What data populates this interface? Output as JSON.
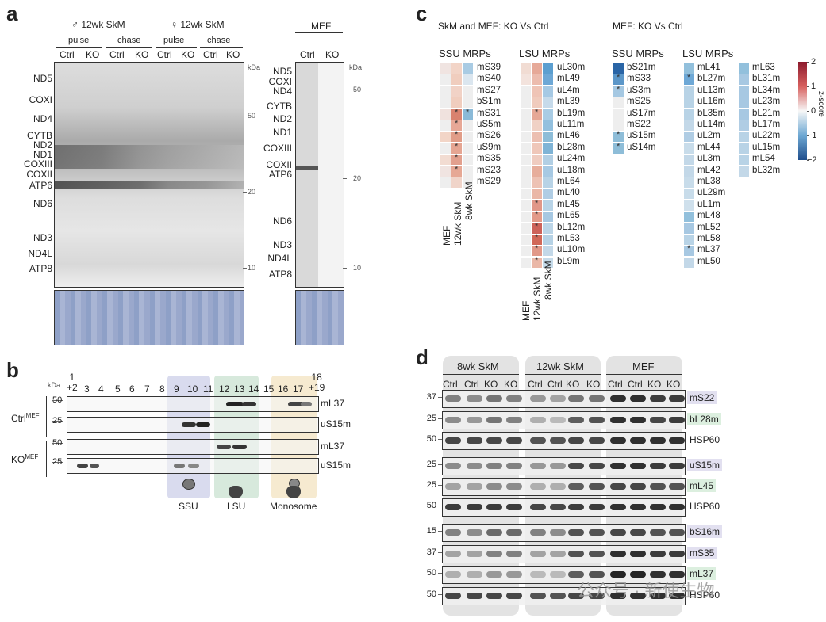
{
  "panel_a": {
    "letter": "a",
    "male_title": "♂ 12wk SkM",
    "female_title": "♀ 12wk SkM",
    "mef_title": "MEF",
    "pulse": "pulse",
    "chase": "chase",
    "lanes": [
      "Ctrl",
      "KO",
      "Ctrl",
      "KO",
      "Ctrl",
      "KO",
      "Ctrl",
      "KO"
    ],
    "mef_lanes": [
      "Ctrl",
      "KO"
    ],
    "kda": "kDa",
    "markers_left_blot": [
      "50",
      "20",
      "10"
    ],
    "markers_mef": [
      "50",
      "20",
      "10"
    ],
    "left_bands": [
      "ND5",
      "COXI",
      "ND4",
      "CYTB",
      "ND2",
      "ND1",
      "COXIII",
      "COXII",
      "ATP6",
      "ND6",
      "ND3",
      "ND4L",
      "ATP8"
    ],
    "mef_bands": [
      "ND5",
      "COXI",
      "ND4",
      "CYTB",
      "ND2",
      "ND1",
      "COXIII",
      "COXII",
      "ATP6",
      "ND6",
      "ND3",
      "ND4L",
      "ATP8"
    ]
  },
  "panel_b": {
    "letter": "b",
    "kda": "kDa",
    "fractions": [
      "1\n+2",
      "3",
      "4",
      "5",
      "6",
      "7",
      "8",
      "9",
      "10",
      "11",
      "12",
      "13",
      "14",
      "15",
      "16",
      "17",
      "18\n+19"
    ],
    "ctrl_label": "Ctrl",
    "ko_label": "KO",
    "sup": "MEF",
    "rows": [
      {
        "marker": "50",
        "protein": "mL37"
      },
      {
        "marker": "25",
        "protein": "uS15m"
      },
      {
        "marker": "50",
        "protein": "mL37"
      },
      {
        "marker": "25",
        "protein": "uS15m"
      }
    ],
    "groups": [
      "SSU",
      "LSU",
      "Monosome"
    ],
    "colors": {
      "ssu": "#d9dbee",
      "lsu": "#d7e9dc",
      "mono": "#f6ead0"
    }
  },
  "panel_c": {
    "letter": "c",
    "title_left": "SkM and MEF: KO Vs Ctrl",
    "title_right": "MEF: KO Vs Ctrl",
    "ssu_title": "SSU MRPs",
    "lsu_title": "LSU MRPs",
    "ssu_title2": "SSU MRPs",
    "lsu_title2": "LSU MRPs",
    "col_labels": [
      "8wk SkM",
      "12wk SkM",
      "MEF"
    ],
    "ssu_rows": [
      "mS39",
      "mS40",
      "mS27",
      "bS1m",
      "mS31",
      "uS5m",
      "mS26",
      "uS9m",
      "mS35",
      "mS23",
      "mS29"
    ],
    "lsu_rows": [
      "uL30m",
      "mL49",
      "uL4m",
      "mL39",
      "bL19m",
      "uL11m",
      "mL46",
      "bL28m",
      "uL24m",
      "uL18m",
      "mL64",
      "mL40",
      "mL45",
      "mL65",
      "bL12m",
      "mL53",
      "uL10m",
      "bL9m"
    ],
    "mef_ssu_rows": [
      "bS21m",
      "mS33",
      "uS3m",
      "mS25",
      "uS17m",
      "mS22",
      "uS15m",
      "uS14m"
    ],
    "mef_lsu_col1": [
      "mL41",
      "bL27m",
      "uL13m",
      "uL16m",
      "bL35m",
      "uL14m",
      "uL2m",
      "mL44",
      "uL3m",
      "mL42",
      "mL38",
      "uL29m",
      "uL1m",
      "mL48",
      "mL52",
      "mL58",
      "mL37",
      "mL50"
    ],
    "mef_lsu_col2": [
      "mL63",
      "bL31m",
      "bL34m",
      "uL23m",
      "bL21m",
      "bL17m",
      "uL22m",
      "uL15m",
      "mL54",
      "bL32m"
    ],
    "colorbar_title": "z-score",
    "colorbar_ticks": [
      "2",
      "1",
      "0",
      "−1",
      "−2"
    ],
    "colors": {
      "high": "#b2182b",
      "mid": "#f7f7f7",
      "low": "#2166ac"
    },
    "star": "*"
  },
  "panel_d": {
    "letter": "d",
    "groups": [
      "8wk SkM",
      "12wk SkM",
      "MEF"
    ],
    "lanes": [
      "Ctrl",
      "Ctrl",
      "KO",
      "KO",
      "Ctrl",
      "Ctrl",
      "KO",
      "KO",
      "Ctrl",
      "Ctrl",
      "KO",
      "KO"
    ],
    "rows": [
      {
        "marker": "37",
        "protein": "mS22",
        "tag": "ssu"
      },
      {
        "marker": "25",
        "protein": "bL28m",
        "tag": "lsu"
      },
      {
        "marker": "50",
        "protein": "HSP60",
        "tag": "none"
      },
      {
        "marker": "25",
        "protein": "uS15m",
        "tag": "ssu"
      },
      {
        "marker": "25",
        "protein": "mL45",
        "tag": "lsu"
      },
      {
        "marker": "50",
        "protein": "HSP60",
        "tag": "none"
      },
      {
        "marker": "15",
        "protein": "bS16m",
        "tag": "ssu"
      },
      {
        "marker": "37",
        "protein": "mS35",
        "tag": "ssu"
      },
      {
        "marker": "50",
        "protein": "mL37",
        "tag": "lsu"
      },
      {
        "marker": "50",
        "protein": "HSP60",
        "tag": "none"
      }
    ]
  },
  "watermark": "公众号 · 新使生物"
}
